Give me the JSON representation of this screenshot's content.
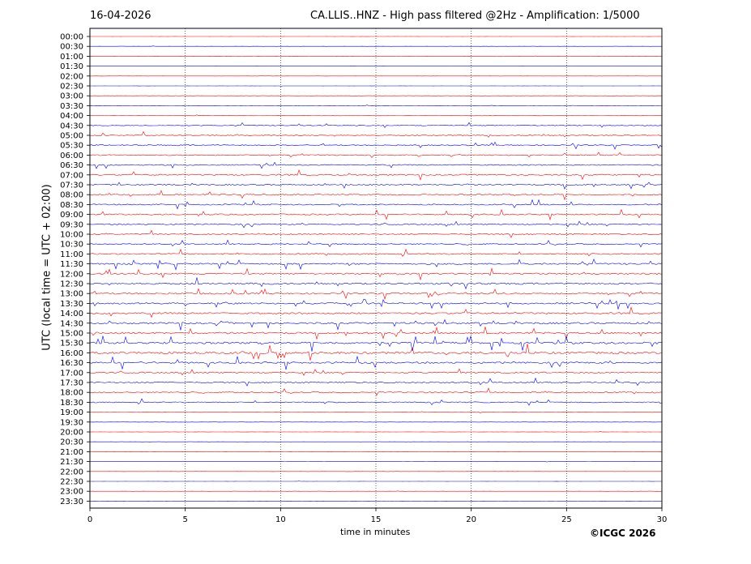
{
  "header": {
    "date": "16-04-2026",
    "title": "CA.LLIS..HNZ - High pass filtered @2Hz - Amplification: 1/5000"
  },
  "footer": {
    "copyright": "©ICGC 2026"
  },
  "chart_data": {
    "type": "line",
    "title": "CA.LLIS..HNZ - High pass filtered @2Hz - Amplification: 1/5000",
    "xlabel": "time in minutes",
    "ylabel": "UTC (local time = UTC + 02:00)",
    "xlim": [
      0,
      30
    ],
    "xticks": [
      "0",
      "5",
      "10",
      "15",
      "20",
      "25",
      "30"
    ],
    "row_labels": [
      "00:00",
      "00:30",
      "01:00",
      "01:30",
      "02:00",
      "02:30",
      "03:00",
      "03:30",
      "04:00",
      "04:30",
      "05:00",
      "05:30",
      "06:00",
      "06:30",
      "07:00",
      "07:30",
      "08:00",
      "08:30",
      "09:00",
      "09:30",
      "10:00",
      "10:30",
      "11:00",
      "11:30",
      "12:00",
      "12:30",
      "13:00",
      "13:30",
      "14:00",
      "14:30",
      "15:00",
      "15:30",
      "16:00",
      "16:30",
      "17:00",
      "17:30",
      "18:00",
      "18:30",
      "19:00",
      "19:30",
      "20:00",
      "20:30",
      "21:00",
      "21:30",
      "22:00",
      "22:30",
      "23:00",
      "23:30"
    ],
    "trace_colors": [
      "#ff0000",
      "#0000ff"
    ],
    "vertical_grid": "dotted",
    "activity": [
      0.05,
      0.05,
      0.05,
      0.05,
      0.05,
      0.05,
      0.1,
      0.1,
      0.15,
      0.4,
      0.5,
      0.5,
      0.45,
      0.5,
      0.6,
      0.6,
      0.55,
      0.55,
      0.6,
      0.55,
      0.6,
      0.55,
      0.6,
      0.7,
      0.7,
      0.75,
      0.7,
      0.7,
      0.75,
      0.85,
      0.85,
      0.95,
      1.0,
      0.8,
      0.6,
      0.6,
      0.55,
      0.45,
      0.15,
      0.1,
      0.1,
      0.05,
      0.05,
      0.05,
      0.05,
      0.05,
      0.05,
      0.05
    ]
  }
}
